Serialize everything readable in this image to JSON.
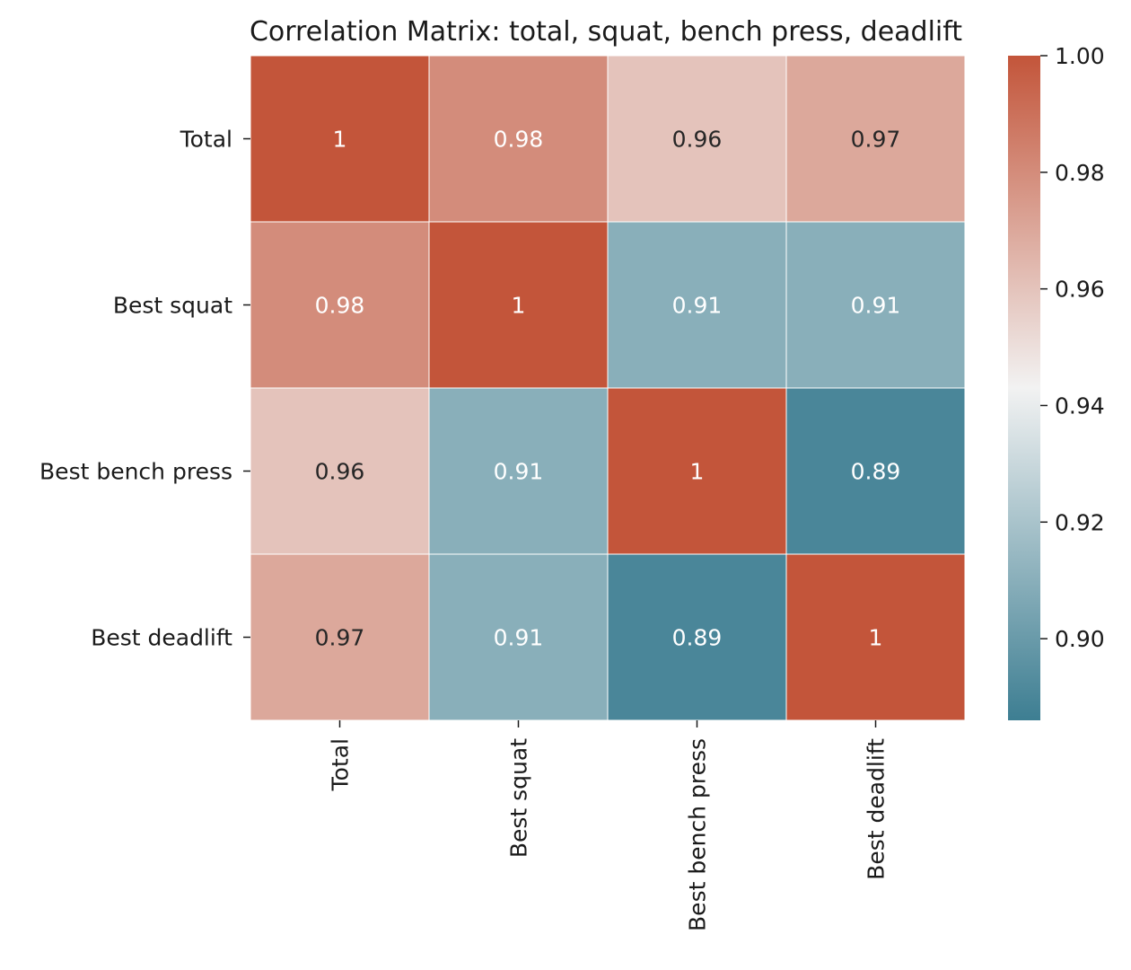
{
  "chart_data": {
    "type": "heatmap",
    "title": "Correlation Matrix: total, squat, bench press, deadlift",
    "xlabel": "",
    "ylabel": "",
    "rows": [
      "Total",
      "Best squat",
      "Best bench press",
      "Best deadlift"
    ],
    "columns": [
      "Total",
      "Best squat",
      "Best bench press",
      "Best deadlift"
    ],
    "values": [
      [
        1.0,
        0.98,
        0.96,
        0.97
      ],
      [
        0.98,
        1.0,
        0.91,
        0.91
      ],
      [
        0.96,
        0.91,
        1.0,
        0.89
      ],
      [
        0.97,
        0.91,
        0.89,
        1.0
      ]
    ],
    "annotations": [
      [
        "1",
        "0.98",
        "0.96",
        "0.97"
      ],
      [
        "0.98",
        "1",
        "0.91",
        "0.91"
      ],
      [
        "0.96",
        "0.91",
        "1",
        "0.89"
      ],
      [
        "0.97",
        "0.91",
        "0.89",
        "1"
      ]
    ],
    "colorbar": {
      "range": [
        0.886,
        1.0
      ],
      "ticks": [
        0.9,
        0.92,
        0.94,
        0.96,
        0.98,
        1.0
      ],
      "tick_labels": [
        "0.90",
        "0.92",
        "0.94",
        "0.96",
        "0.98",
        "1.00"
      ]
    },
    "colormap": {
      "stops": [
        {
          "value": 0.886,
          "color": "#3d7e92"
        },
        {
          "value": 0.943,
          "color": "#f2f2f2"
        },
        {
          "value": 1.0,
          "color": "#c3553a"
        }
      ]
    },
    "grid": false,
    "legend": "colorbar-right"
  }
}
